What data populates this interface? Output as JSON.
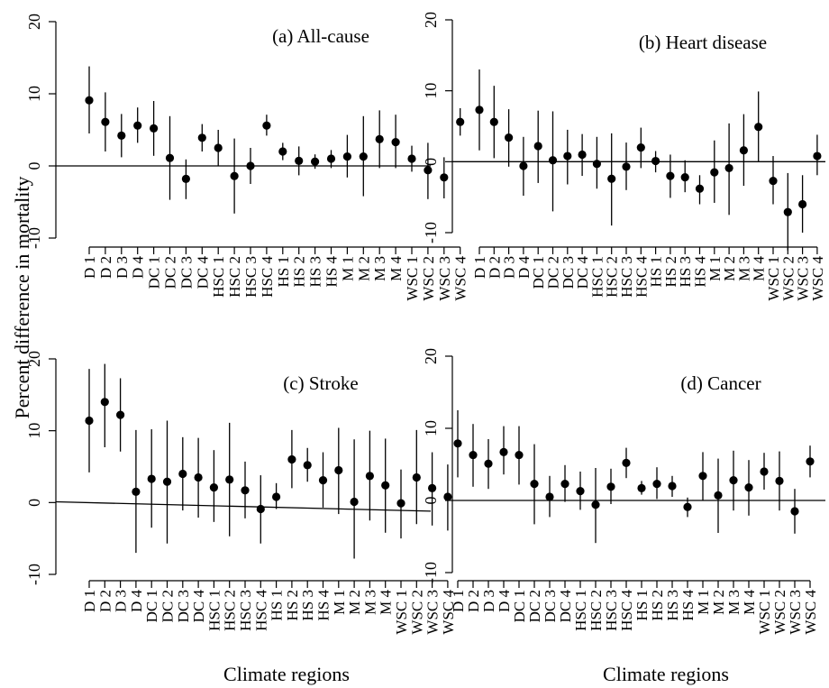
{
  "figure": {
    "ylabel": "Percent difference in mortality",
    "xlabel": "Climate regions"
  },
  "chart_data": [
    {
      "type": "scatter",
      "title": "(a) All-cause",
      "ylim": [
        -10,
        20
      ],
      "yticks": [
        -10,
        0,
        10,
        20
      ],
      "categories": [
        "D 1",
        "D 2",
        "D 3",
        "D 4",
        "DC 1",
        "DC 2",
        "DC 3",
        "DC 4",
        "HSC 1",
        "HSC 2",
        "HSC 3",
        "HSC 4",
        "HS 1",
        "HS 2",
        "HS 3",
        "HS 4",
        "M 1",
        "M 2",
        "M 3",
        "M 4",
        "WSC 1",
        "WSC 2",
        "WSC 3",
        "WSC 4"
      ],
      "values": [
        9.1,
        6.1,
        4.2,
        5.6,
        5.2,
        1.1,
        -1.8,
        3.9,
        2.5,
        -1.4,
        0.0,
        5.6,
        2.0,
        0.7,
        0.6,
        1.0,
        1.3,
        1.3,
        3.7,
        3.3,
        1.0,
        -0.6,
        -1.6,
        6.1
      ],
      "lower": [
        4.5,
        2.0,
        1.2,
        3.2,
        1.4,
        -4.7,
        -4.6,
        2.0,
        0.0,
        -6.6,
        -2.5,
        4.2,
        0.8,
        -1.3,
        -0.4,
        -0.3,
        -1.6,
        -4.2,
        -0.3,
        -0.3,
        -0.8,
        -4.6,
        -4.5,
        4.2
      ],
      "upper": [
        13.8,
        10.2,
        7.2,
        8.1,
        9.0,
        6.9,
        0.9,
        5.8,
        5.0,
        3.8,
        2.5,
        7.1,
        3.2,
        2.7,
        1.6,
        2.2,
        4.3,
        6.9,
        7.7,
        7.1,
        2.8,
        3.2,
        1.2,
        8.0
      ],
      "grid": false
    },
    {
      "type": "scatter",
      "title": "(b) Heart disease",
      "ylim": [
        -10,
        20
      ],
      "yticks": [
        -10,
        0,
        10,
        20
      ],
      "categories": [
        "D 1",
        "D 2",
        "D 3",
        "D 4",
        "DC 1",
        "DC 2",
        "DC 3",
        "DC 4",
        "HSC 1",
        "HSC 2",
        "HSC 3",
        "HSC 4",
        "HS 1",
        "HS 2",
        "HS 3",
        "HS 4",
        "M 1",
        "M 2",
        "M 3",
        "M 4",
        "WSC 1",
        "WSC 2",
        "WSC 3",
        "WSC 4"
      ],
      "values": [
        7.3,
        5.6,
        3.4,
        -0.6,
        2.2,
        0.2,
        0.8,
        1.0,
        -0.3,
        -2.4,
        -0.7,
        2.0,
        0.1,
        -2.0,
        -2.2,
        -3.8,
        -1.5,
        -0.9,
        1.6,
        4.9,
        -2.7,
        -7.1,
        -6.0,
        0.8
      ],
      "lower": [
        1.6,
        0.5,
        -0.7,
        -4.8,
        -3.0,
        -7.0,
        -3.2,
        -2.0,
        -3.8,
        -9.0,
        -4.0,
        -0.9,
        -1.5,
        -5.1,
        -4.3,
        -6.0,
        -5.8,
        -7.5,
        -3.4,
        0.0,
        -6.0,
        -12.5,
        -10.0,
        -1.9
      ],
      "upper": [
        13.0,
        10.7,
        7.4,
        3.5,
        7.2,
        7.1,
        4.5,
        3.9,
        3.5,
        4.0,
        2.7,
        4.8,
        1.5,
        1.0,
        0.2,
        -1.9,
        3.0,
        5.4,
        6.7,
        9.9,
        0.8,
        -1.6,
        -1.9,
        3.8
      ],
      "grid": false
    },
    {
      "type": "scatter",
      "title": "(c) Stroke",
      "ylim": [
        -10,
        20
      ],
      "yticks": [
        -10,
        0,
        10,
        20
      ],
      "categories": [
        "D 1",
        "D 2",
        "D 3",
        "D 4",
        "DC 1",
        "DC 2",
        "DC 3",
        "DC 4",
        "HSC 1",
        "HSC 2",
        "HSC 3",
        "HSC 4",
        "HS 1",
        "HS 2",
        "HS 3",
        "HS 4",
        "M 1",
        "M 2",
        "M 3",
        "M 4",
        "WSC 1",
        "WSC 2",
        "WSC 3",
        "WSC 4"
      ],
      "values": [
        11.4,
        14.0,
        12.2,
        1.5,
        3.3,
        2.9,
        4.0,
        3.5,
        2.1,
        3.2,
        1.7,
        -0.9,
        0.8,
        6.0,
        5.2,
        3.1,
        4.5,
        0.1,
        3.7,
        2.4,
        -0.1,
        3.5,
        2.0,
        0.8
      ],
      "lower": [
        4.2,
        7.7,
        7.1,
        -7.0,
        -3.5,
        -5.7,
        -1.1,
        -2.1,
        -2.7,
        -4.7,
        -2.2,
        -5.7,
        -0.9,
        2.0,
        2.9,
        -0.7,
        -1.6,
        -7.8,
        -2.5,
        -4.2,
        -5.0,
        -3.0,
        -3.2,
        -3.9
      ],
      "upper": [
        18.6,
        19.3,
        17.3,
        10.1,
        10.2,
        11.4,
        9.1,
        9.0,
        7.3,
        11.1,
        5.7,
        3.8,
        2.7,
        10.1,
        7.6,
        7.0,
        10.4,
        8.8,
        10.0,
        8.9,
        4.6,
        10.1,
        7.0,
        5.3
      ],
      "reference_line": [
        0.1,
        -1.2
      ],
      "grid": false
    },
    {
      "type": "scatter",
      "title": "(d) Cancer",
      "ylim": [
        -10,
        20
      ],
      "yticks": [
        -10,
        0,
        10,
        20
      ],
      "categories": [
        "D 1",
        "D 2",
        "D 3",
        "D 4",
        "DC 1",
        "DC 2",
        "DC 3",
        "DC 4",
        "HSC 1",
        "HSC 2",
        "HSC 3",
        "HSC 4",
        "HS 1",
        "HS 2",
        "HS 3",
        "HS 4",
        "M 1",
        "M 2",
        "M 3",
        "M 4",
        "WSC 1",
        "WSC 2",
        "WSC 3",
        "WSC 4"
      ],
      "values": [
        7.9,
        6.3,
        5.1,
        6.7,
        6.3,
        2.3,
        0.5,
        2.3,
        1.3,
        -0.6,
        1.9,
        5.2,
        1.7,
        2.3,
        2.0,
        -0.9,
        3.4,
        0.7,
        2.8,
        1.8,
        4.0,
        2.7,
        -1.5,
        5.4
      ],
      "lower": [
        3.2,
        1.9,
        1.6,
        3.6,
        2.2,
        -3.3,
        -2.3,
        -0.2,
        -1.3,
        -5.9,
        -0.5,
        3.1,
        0.8,
        0.2,
        0.5,
        -2.3,
        0.0,
        -4.5,
        -1.4,
        -2.1,
        1.5,
        -1.4,
        -4.6,
        3.2
      ],
      "upper": [
        12.5,
        10.6,
        8.5,
        10.3,
        10.3,
        7.8,
        3.4,
        4.9,
        4.0,
        4.5,
        4.4,
        7.3,
        2.7,
        4.6,
        3.4,
        0.4,
        6.7,
        5.8,
        6.9,
        5.6,
        6.6,
        6.8,
        1.6,
        7.6
      ],
      "grid": false
    }
  ]
}
